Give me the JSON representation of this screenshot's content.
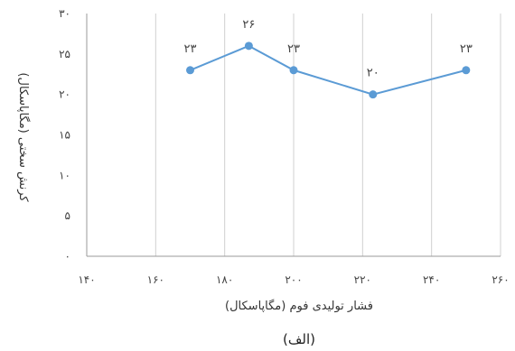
{
  "chart_data": {
    "type": "line",
    "x": [
      170,
      187,
      200,
      223,
      250
    ],
    "series": [
      {
        "values": [
          23,
          26,
          23,
          20,
          23
        ],
        "data_labels": [
          "۲۳",
          "۲۶",
          "۲۳",
          "۲۰",
          "۲۳"
        ],
        "color": "#5b9bd5"
      }
    ],
    "xlim": [
      140,
      260
    ],
    "ylim": [
      0,
      30
    ],
    "x_ticks": [
      140,
      160,
      180,
      200,
      220,
      240,
      260
    ],
    "x_tick_labels": [
      "۱۴۰",
      "۱۶۰",
      "۱۸۰",
      "۲۰۰",
      "۲۲۰",
      "۲۴۰",
      "۲۶۰"
    ],
    "y_ticks": [
      0,
      5,
      10,
      15,
      20,
      25,
      30
    ],
    "y_tick_labels": [
      "۰",
      "۵",
      "۱۰",
      "۱۵",
      "۲۰",
      "۲۵",
      "۳۰"
    ],
    "xlabel": "فشار تولیدی فوم (مگاپاسکال)",
    "ylabel": "کرنش سختی (مگاپاسکال)",
    "grid": "vertical",
    "legend": "none"
  },
  "caption": "(الف)",
  "colors": {
    "line": "#5b9bd5",
    "grid": "#d0d0d0",
    "axis": "#9a9a9a"
  }
}
